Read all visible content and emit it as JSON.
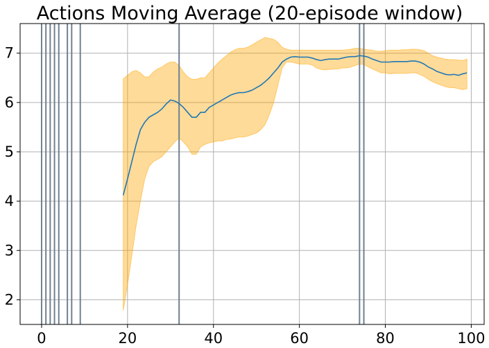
{
  "chart_data": {
    "type": "line",
    "title": "Actions Moving Average (20-episode window)",
    "xlabel": "",
    "ylabel": "",
    "xlim": [
      -5,
      103
    ],
    "ylim": [
      1.5,
      7.6
    ],
    "x_ticks": [
      0,
      20,
      40,
      60,
      80,
      100
    ],
    "y_ticks": [
      2,
      3,
      4,
      5,
      6,
      7
    ],
    "grid": true,
    "colors": {
      "line": "#1f77b4",
      "band": "#ffa500",
      "vlines": "#708090",
      "grid": "#b0b0b0"
    },
    "vertical_lines": [
      0,
      1,
      2,
      3,
      4,
      6,
      7,
      9,
      32,
      74,
      75
    ],
    "series": [
      {
        "x": [
          19,
          20,
          21,
          22,
          23,
          24,
          25,
          26,
          27,
          28,
          29,
          30,
          31,
          32,
          33,
          34,
          35,
          36,
          37,
          38,
          39,
          40,
          41,
          42,
          43,
          44,
          45,
          46,
          47,
          48,
          49,
          50,
          51,
          52,
          53,
          54,
          55,
          56,
          57,
          58,
          59,
          60,
          61,
          62,
          63,
          64,
          65,
          66,
          67,
          68,
          69,
          70,
          71,
          72,
          73,
          74,
          75,
          76,
          77,
          78,
          79,
          80,
          81,
          82,
          83,
          84,
          85,
          86,
          87,
          88,
          89,
          90,
          91,
          92,
          93,
          94,
          95,
          96,
          97,
          98,
          99
        ],
        "mean": [
          4.12,
          4.45,
          4.8,
          5.15,
          5.45,
          5.6,
          5.7,
          5.75,
          5.8,
          5.87,
          5.97,
          6.05,
          6.03,
          5.98,
          5.9,
          5.8,
          5.7,
          5.7,
          5.8,
          5.8,
          5.9,
          5.95,
          6.0,
          6.05,
          6.1,
          6.15,
          6.18,
          6.2,
          6.2,
          6.22,
          6.25,
          6.3,
          6.35,
          6.42,
          6.5,
          6.6,
          6.7,
          6.82,
          6.88,
          6.92,
          6.93,
          6.92,
          6.92,
          6.92,
          6.9,
          6.87,
          6.85,
          6.87,
          6.88,
          6.88,
          6.88,
          6.9,
          6.92,
          6.93,
          6.93,
          6.95,
          6.94,
          6.92,
          6.88,
          6.85,
          6.82,
          6.82,
          6.82,
          6.83,
          6.83,
          6.83,
          6.83,
          6.84,
          6.84,
          6.82,
          6.78,
          6.72,
          6.68,
          6.63,
          6.6,
          6.57,
          6.56,
          6.57,
          6.55,
          6.58,
          6.6
        ],
        "upper": [
          6.48,
          6.55,
          6.62,
          6.65,
          6.6,
          6.52,
          6.52,
          6.62,
          6.68,
          6.72,
          6.78,
          6.82,
          6.82,
          6.75,
          6.62,
          6.52,
          6.47,
          6.47,
          6.5,
          6.5,
          6.6,
          6.7,
          6.8,
          6.88,
          6.95,
          7.02,
          7.07,
          7.1,
          7.1,
          7.12,
          7.17,
          7.22,
          7.27,
          7.32,
          7.3,
          7.28,
          7.22,
          7.12,
          7.08,
          7.06,
          7.06,
          7.06,
          7.06,
          7.06,
          7.06,
          7.06,
          7.06,
          7.06,
          7.06,
          7.06,
          7.06,
          7.06,
          7.07,
          7.08,
          7.1,
          7.1,
          7.08,
          7.07,
          7.06,
          7.04,
          7.04,
          7.05,
          7.06,
          7.06,
          7.06,
          7.07,
          7.07,
          7.08,
          7.08,
          7.07,
          7.05,
          7.0,
          6.95,
          6.92,
          6.9,
          6.88,
          6.87,
          6.87,
          6.86,
          6.85,
          6.88
        ],
        "lower": [
          1.78,
          2.3,
          2.9,
          3.5,
          4.0,
          4.45,
          4.7,
          4.8,
          4.85,
          4.9,
          5.0,
          5.1,
          5.2,
          5.28,
          5.2,
          5.1,
          4.95,
          4.95,
          5.1,
          5.15,
          5.18,
          5.2,
          5.22,
          5.22,
          5.25,
          5.26,
          5.28,
          5.3,
          5.3,
          5.32,
          5.35,
          5.38,
          5.45,
          5.55,
          5.75,
          6.0,
          6.35,
          6.7,
          6.82,
          6.82,
          6.8,
          6.78,
          6.78,
          6.78,
          6.76,
          6.7,
          6.67,
          6.66,
          6.67,
          6.68,
          6.68,
          6.7,
          6.7,
          6.72,
          6.75,
          6.78,
          6.77,
          6.72,
          6.68,
          6.64,
          6.6,
          6.6,
          6.58,
          6.59,
          6.59,
          6.59,
          6.59,
          6.6,
          6.6,
          6.57,
          6.53,
          6.47,
          6.42,
          6.38,
          6.35,
          6.32,
          6.3,
          6.3,
          6.28,
          6.26,
          6.28
        ]
      }
    ]
  }
}
